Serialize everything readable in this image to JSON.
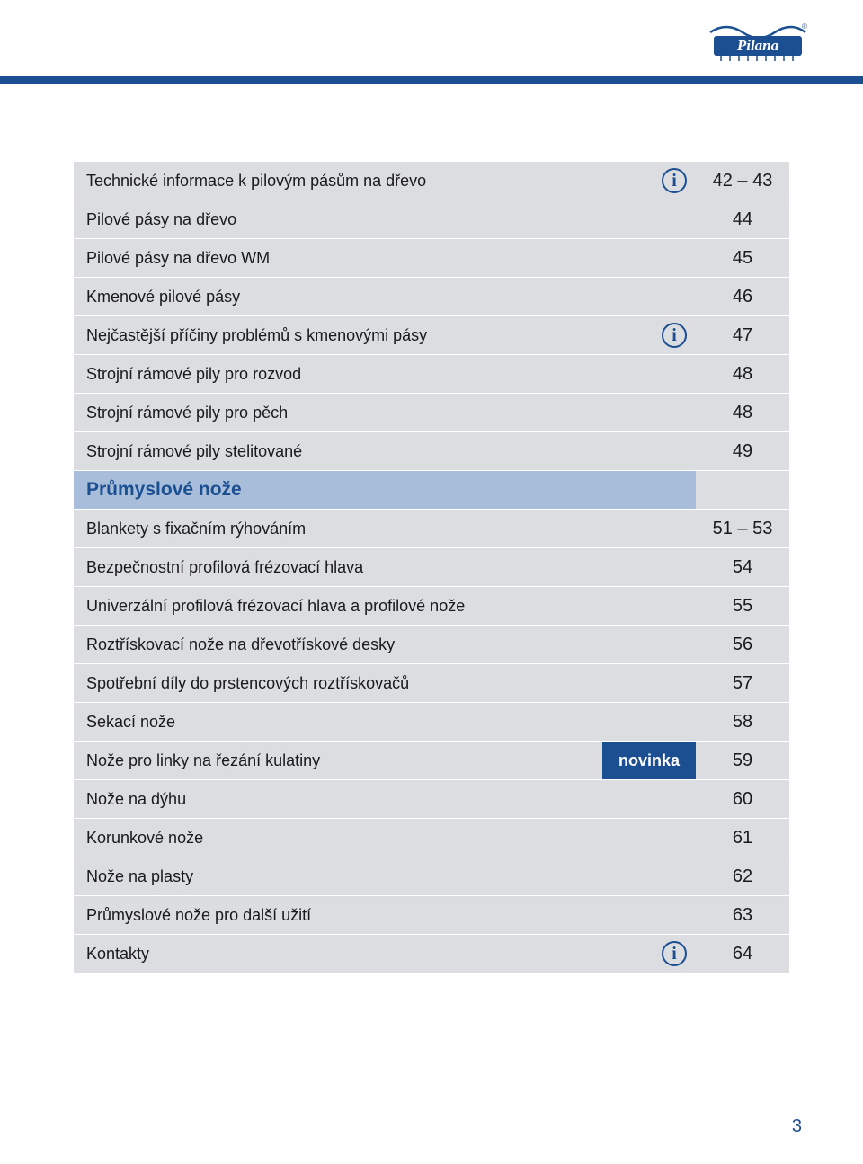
{
  "colors": {
    "header_bar": "#1c4f91",
    "row_bg": "#dbdde0",
    "row_text": "#1a1a1a",
    "section_bg": "#a8bdd9",
    "section_text": "#1c4f91",
    "info_icon": "#1c4f91",
    "badge_bg": "#1c4f91",
    "badge_text": "#ffffff",
    "logo_blue": "#1c4f91",
    "page_num": "#1c4f91"
  },
  "logo_text": "Pilana",
  "rows": [
    {
      "label": "Technické informace k pilovým pásům na dřevo",
      "page": "42 – 43",
      "info": true
    },
    {
      "label": "Pilové pásy na dřevo",
      "page": "44"
    },
    {
      "label": "Pilové pásy na dřevo WM",
      "page": "45"
    },
    {
      "label": "Kmenové pilové pásy",
      "page": "46"
    },
    {
      "label": "Nejčastější příčiny problémů s kmenovými pásy",
      "page": "47",
      "info": true
    },
    {
      "label": "Strojní rámové pily pro rozvod",
      "page": "48"
    },
    {
      "label": "Strojní rámové pily pro pěch",
      "page": "48"
    },
    {
      "label": "Strojní rámové pily stelitované",
      "page": "49"
    },
    {
      "label": "Průmyslové nože",
      "page": "",
      "section": true
    },
    {
      "label": "Blankety s fixačním rýhováním",
      "page": "51 – 53"
    },
    {
      "label": "Bezpečnostní profilová frézovací hlava",
      "page": "54"
    },
    {
      "label": "Univerzální profilová frézovací hlava a profilové nože",
      "page": "55"
    },
    {
      "label": "Roztřískovací nože na dřevotřískové desky",
      "page": "56"
    },
    {
      "label": "Spotřební díly do prstencových roztřískovačů",
      "page": "57"
    },
    {
      "label": "Sekací nože",
      "page": "58"
    },
    {
      "label": "Nože pro linky na řezání kulatiny",
      "page": "59",
      "badge": "novinka"
    },
    {
      "label": "Nože na dýhu",
      "page": "60"
    },
    {
      "label": "Korunkové nože",
      "page": "61"
    },
    {
      "label": "Nože na plasty",
      "page": "62"
    },
    {
      "label": "Průmyslové nože pro další užití",
      "page": "63"
    },
    {
      "label": "Kontakty",
      "page": "64",
      "info": true
    }
  ],
  "page_number": "3"
}
